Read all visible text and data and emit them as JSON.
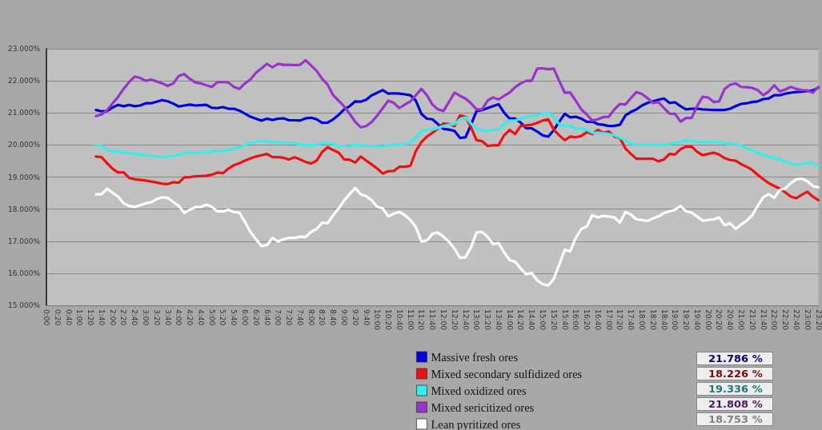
{
  "chart_data": {
    "type": "line",
    "categories": [
      "0:00",
      null,
      "0:20",
      null,
      "0:40",
      null,
      "1:00",
      null,
      "1:20",
      null,
      "1:40",
      null,
      "2:00",
      null,
      "2:20",
      null,
      "2:40",
      null,
      "3:00",
      null,
      "3:20",
      null,
      "3:40",
      null,
      "4:00",
      null,
      "4:20",
      null,
      "4:40",
      null,
      "5:00",
      null,
      "5:20",
      null,
      "5:40",
      null,
      "6:00",
      null,
      "6:20",
      null,
      "6:40",
      null,
      "7:00",
      null,
      "7:20",
      null,
      "7:40",
      null,
      "8:00",
      null,
      "8:20",
      null,
      "8:40",
      null,
      "9:00",
      null,
      "9:20",
      null,
      "9:40",
      null,
      "10:00",
      null,
      "10:20",
      null,
      "10:40",
      null,
      "11:00",
      null,
      "11:20",
      null,
      "11:40",
      null,
      "12:00",
      null,
      "12:20",
      null,
      "12:40",
      null,
      "13:00",
      null,
      "13:20",
      null,
      "13:40",
      null,
      "14:00",
      null,
      "14:20",
      null,
      "14:40",
      null,
      "15:00",
      null,
      "15:20",
      null,
      "15:40",
      null,
      "16:00",
      null,
      "16:20",
      null,
      "16:40",
      null,
      "17:00",
      null,
      "17:20",
      null,
      "17:40",
      null,
      "18:00",
      null,
      "18:20",
      null,
      "18:40",
      null,
      "19:00",
      null,
      "19:20",
      null,
      "19:40",
      null,
      "20:00",
      null,
      "20:20",
      null,
      "20:40",
      null,
      "21:00",
      null,
      "21:20",
      null,
      "21:40",
      null,
      "22:00",
      null,
      "22:20",
      null,
      "22:40",
      null,
      "23:00",
      null,
      "23:20"
    ],
    "series": [
      {
        "name": "Massive fresh ores",
        "color": "#0000dd",
        "values": [
          null,
          null,
          null,
          null,
          null,
          null,
          null,
          null,
          null,
          21.09,
          21.05,
          21.06,
          21.17,
          21.25,
          21.21,
          21.25,
          21.21,
          21.23,
          21.3,
          21.3,
          21.35,
          21.4,
          21.36,
          21.29,
          21.2,
          21.23,
          21.26,
          21.23,
          21.24,
          21.25,
          21.16,
          21.15,
          21.18,
          21.13,
          21.13,
          21.07,
          20.98,
          20.88,
          20.82,
          20.76,
          20.82,
          20.78,
          20.82,
          20.83,
          20.77,
          20.77,
          20.76,
          20.83,
          20.85,
          20.8,
          20.69,
          20.7,
          20.8,
          20.94,
          21.11,
          21.21,
          21.36,
          21.35,
          21.41,
          21.55,
          21.63,
          21.71,
          21.6,
          21.61,
          21.6,
          21.58,
          21.55,
          21.38,
          20.97,
          20.82,
          20.8,
          20.65,
          20.5,
          20.48,
          20.44,
          20.22,
          20.24,
          20.63,
          21.06,
          21.09,
          21.15,
          21.21,
          21.27,
          21.01,
          20.82,
          20.82,
          20.7,
          20.52,
          20.52,
          20.42,
          20.3,
          20.26,
          20.46,
          20.72,
          20.97,
          20.86,
          20.88,
          20.82,
          20.72,
          20.73,
          20.65,
          20.63,
          20.59,
          20.6,
          20.63,
          20.92,
          21.03,
          21.11,
          21.23,
          21.31,
          21.36,
          21.41,
          21.45,
          21.31,
          21.33,
          21.21,
          21.11,
          21.13,
          21.13,
          21.11,
          21.1,
          21.09,
          21.09,
          21.09,
          21.13,
          21.21,
          21.28,
          21.3,
          21.34,
          21.36,
          21.43,
          21.45,
          21.55,
          21.55,
          21.6,
          21.63,
          21.65,
          21.66,
          21.68,
          21.7,
          21.79
        ]
      },
      {
        "name": "Mixed secondary sulfidized ores",
        "color": "#ee1111",
        "values": [
          null,
          null,
          null,
          null,
          null,
          null,
          null,
          null,
          null,
          19.64,
          19.62,
          19.43,
          19.26,
          19.14,
          19.15,
          18.97,
          18.93,
          18.91,
          18.89,
          18.86,
          18.83,
          18.79,
          18.78,
          18.84,
          18.82,
          18.99,
          19.0,
          19.02,
          19.03,
          19.04,
          19.07,
          19.14,
          19.12,
          19.26,
          19.37,
          19.43,
          19.51,
          19.58,
          19.64,
          19.68,
          19.72,
          19.62,
          19.62,
          19.6,
          19.55,
          19.62,
          19.55,
          19.47,
          19.42,
          19.51,
          19.78,
          19.93,
          19.84,
          19.76,
          19.55,
          19.54,
          19.45,
          19.64,
          19.51,
          19.39,
          19.26,
          19.11,
          19.18,
          19.19,
          19.32,
          19.32,
          19.35,
          19.81,
          20.09,
          20.26,
          20.38,
          20.51,
          20.67,
          20.65,
          20.59,
          20.92,
          20.88,
          20.55,
          20.15,
          20.12,
          19.97,
          19.99,
          19.99,
          20.3,
          20.47,
          20.34,
          20.59,
          20.61,
          20.63,
          20.69,
          20.76,
          20.8,
          20.48,
          20.3,
          20.15,
          20.26,
          20.24,
          20.28,
          20.4,
          20.34,
          20.47,
          20.38,
          20.42,
          20.26,
          20.22,
          19.89,
          19.72,
          19.57,
          19.57,
          19.57,
          19.57,
          19.49,
          19.55,
          19.72,
          19.7,
          19.87,
          19.95,
          19.95,
          19.79,
          19.68,
          19.72,
          19.76,
          19.7,
          19.59,
          19.53,
          19.51,
          19.4,
          19.32,
          19.22,
          19.07,
          18.93,
          18.81,
          18.72,
          18.64,
          18.52,
          18.39,
          18.34,
          18.45,
          18.54,
          18.39,
          18.28
        ]
      },
      {
        "name": "Mixed oxidized ores",
        "color": "#33eeee",
        "values": [
          null,
          null,
          null,
          null,
          null,
          null,
          null,
          null,
          null,
          19.99,
          19.97,
          19.84,
          19.8,
          19.8,
          19.76,
          19.74,
          19.72,
          19.7,
          19.68,
          19.66,
          19.64,
          19.62,
          19.64,
          19.66,
          19.7,
          19.76,
          19.76,
          19.76,
          19.76,
          19.78,
          19.8,
          19.82,
          19.8,
          19.84,
          19.88,
          19.92,
          20.0,
          20.07,
          20.09,
          20.12,
          20.13,
          20.09,
          20.08,
          20.07,
          20.07,
          20.05,
          20.01,
          19.99,
          19.99,
          20.01,
          20.05,
          20.07,
          20.03,
          19.97,
          19.97,
          19.95,
          20.01,
          19.99,
          19.97,
          19.97,
          19.97,
          19.95,
          19.99,
          20.01,
          20.01,
          20.03,
          20.09,
          20.22,
          20.43,
          20.47,
          20.48,
          20.53,
          20.59,
          20.63,
          20.65,
          20.8,
          20.86,
          20.67,
          20.51,
          20.47,
          20.43,
          20.47,
          20.48,
          20.65,
          20.76,
          20.76,
          20.82,
          20.87,
          20.9,
          20.92,
          20.98,
          21.01,
          20.88,
          20.65,
          20.59,
          20.59,
          20.51,
          20.51,
          20.47,
          20.38,
          20.38,
          20.37,
          20.34,
          20.3,
          20.23,
          20.13,
          20.05,
          20.01,
          20.01,
          20.01,
          20.01,
          20.01,
          19.99,
          20.03,
          20.05,
          20.09,
          20.15,
          20.13,
          20.09,
          20.09,
          20.09,
          20.09,
          20.08,
          20.05,
          20.03,
          20.03,
          19.97,
          19.9,
          19.84,
          19.76,
          19.7,
          19.64,
          19.59,
          19.55,
          19.49,
          19.42,
          19.37,
          19.39,
          19.45,
          19.43,
          19.35
        ]
      },
      {
        "name": "Mixed sericitized ores",
        "color": "#9933cc",
        "values": [
          null,
          null,
          null,
          null,
          null,
          null,
          null,
          null,
          null,
          20.9,
          20.95,
          21.09,
          21.3,
          21.5,
          21.75,
          21.96,
          22.13,
          22.09,
          22.0,
          22.04,
          21.98,
          21.92,
          21.84,
          21.92,
          22.15,
          22.21,
          22.06,
          21.95,
          21.92,
          21.86,
          21.81,
          21.96,
          21.96,
          21.95,
          21.81,
          21.75,
          21.92,
          22.04,
          22.25,
          22.39,
          22.53,
          22.42,
          22.53,
          22.5,
          22.5,
          22.49,
          22.5,
          22.64,
          22.48,
          22.31,
          22.06,
          21.88,
          21.55,
          21.38,
          21.2,
          20.97,
          20.72,
          20.55,
          20.59,
          20.72,
          20.92,
          21.15,
          21.38,
          21.31,
          21.15,
          21.26,
          21.36,
          21.55,
          21.75,
          21.55,
          21.26,
          21.11,
          21.06,
          21.34,
          21.63,
          21.53,
          21.45,
          21.3,
          21.11,
          21.11,
          21.38,
          21.48,
          21.42,
          21.53,
          21.63,
          21.8,
          21.92,
          22.0,
          22.0,
          22.38,
          22.39,
          22.36,
          22.38,
          22.0,
          21.63,
          21.63,
          21.38,
          21.11,
          20.95,
          20.76,
          20.8,
          20.87,
          20.88,
          21.11,
          21.28,
          21.26,
          21.46,
          21.65,
          21.59,
          21.46,
          21.31,
          21.34,
          21.15,
          20.98,
          20.97,
          20.73,
          20.84,
          20.84,
          21.21,
          21.5,
          21.48,
          21.34,
          21.36,
          21.75,
          21.88,
          21.92,
          21.81,
          21.8,
          21.78,
          21.71,
          21.55,
          21.67,
          21.86,
          21.67,
          21.73,
          21.81,
          21.75,
          21.71,
          21.7,
          21.63,
          21.81
        ]
      },
      {
        "name": "Lean pyritized ores",
        "color": "#ffffff",
        "values": [
          null,
          null,
          null,
          null,
          null,
          null,
          null,
          null,
          null,
          18.46,
          18.46,
          18.64,
          18.51,
          18.39,
          18.18,
          18.1,
          18.07,
          18.12,
          18.18,
          18.21,
          18.31,
          18.37,
          18.35,
          18.22,
          18.1,
          17.88,
          17.98,
          18.06,
          18.07,
          18.14,
          18.07,
          17.93,
          17.93,
          17.98,
          17.91,
          17.89,
          17.6,
          17.29,
          17.06,
          16.85,
          16.88,
          17.1,
          16.99,
          17.06,
          17.1,
          17.1,
          17.14,
          17.13,
          17.29,
          17.38,
          17.58,
          17.56,
          17.81,
          18.02,
          18.27,
          18.47,
          18.66,
          18.46,
          18.41,
          18.27,
          18.07,
          18.02,
          17.77,
          17.86,
          17.91,
          17.81,
          17.66,
          17.44,
          16.99,
          17.02,
          17.23,
          17.27,
          17.14,
          16.98,
          16.77,
          16.48,
          16.5,
          16.81,
          17.27,
          17.29,
          17.14,
          16.91,
          16.94,
          16.65,
          16.41,
          16.36,
          16.15,
          15.97,
          16.01,
          15.78,
          15.66,
          15.62,
          15.82,
          16.27,
          16.73,
          16.69,
          17.1,
          17.38,
          17.46,
          17.81,
          17.74,
          17.79,
          17.77,
          17.74,
          17.58,
          17.91,
          17.83,
          17.68,
          17.66,
          17.63,
          17.71,
          17.77,
          17.88,
          17.93,
          17.98,
          18.1,
          17.93,
          17.89,
          17.77,
          17.64,
          17.66,
          17.68,
          17.74,
          17.5,
          17.56,
          17.38,
          17.52,
          17.64,
          17.81,
          18.1,
          18.37,
          18.47,
          18.35,
          18.6,
          18.64,
          18.81,
          18.93,
          18.95,
          18.87,
          18.72,
          18.68
        ]
      }
    ],
    "ylim": [
      15,
      23
    ],
    "yticks": [
      {
        "value": 15,
        "label": "15.000%"
      },
      {
        "value": 16,
        "label": "16.000%"
      },
      {
        "value": 17,
        "label": "17.000%"
      },
      {
        "value": 18,
        "label": "18.000%"
      },
      {
        "value": 19,
        "label": "19.000%"
      },
      {
        "value": 20,
        "label": "20.000%"
      },
      {
        "value": 21,
        "label": "21.000%"
      },
      {
        "value": 22,
        "label": "22.000%"
      },
      {
        "value": 23,
        "label": "23.000%"
      }
    ],
    "grid": "y",
    "legend": "bottom",
    "marker": "none",
    "line_style": "solid",
    "annotations": [
      "21.786 %",
      "18.226 %",
      "19.336 %",
      "21.808 %",
      "18.753 %"
    ]
  }
}
